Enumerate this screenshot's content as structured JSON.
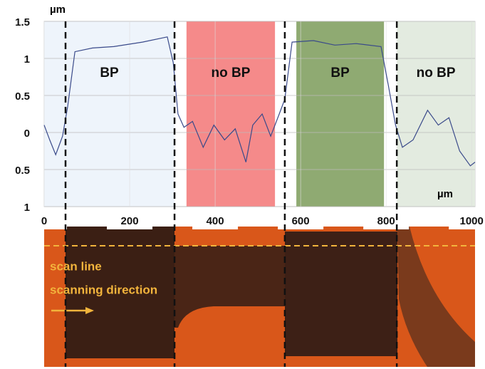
{
  "chart_data": {
    "type": "line",
    "y_unit": "µm",
    "x_unit": "µm",
    "x": [
      0,
      13,
      27,
      43,
      55,
      72,
      113,
      163,
      230,
      288,
      302,
      313,
      327,
      347,
      372,
      397,
      422,
      447,
      472,
      488,
      510,
      530,
      550,
      563,
      580,
      630,
      680,
      730,
      788,
      805,
      822,
      838,
      863,
      897,
      922,
      947,
      972,
      997,
      1008
    ],
    "series": [
      {
        "color": "#3a4a8a",
        "values": [
          0.1,
          -0.1,
          -0.3,
          -0.05,
          0.35,
          1.09,
          1.14,
          1.16,
          1.22,
          1.29,
          0.94,
          0.25,
          0.07,
          0.15,
          -0.2,
          0.1,
          -0.1,
          0.05,
          -0.4,
          0.1,
          0.25,
          -0.05,
          0.25,
          0.45,
          1.22,
          1.24,
          1.18,
          1.2,
          1.16,
          0.64,
          0.1,
          -0.2,
          -0.1,
          0.3,
          0.1,
          0.2,
          -0.25,
          -0.45,
          -0.4
        ]
      }
    ],
    "regions": [
      {
        "label": "BP",
        "x": [
          0,
          305
        ],
        "color": "#eef4fb"
      },
      {
        "label": "no BP",
        "x": [
          333,
          540
        ],
        "color": "#f58a8a"
      },
      {
        "label": "BP",
        "x": [
          590,
          795
        ],
        "color": "#8faa72"
      },
      {
        "label": "no BP",
        "x": [
          825,
          1008
        ],
        "color": "#e3ebe0"
      }
    ],
    "dividers": [
      50,
      305,
      563,
      825
    ],
    "xlim": [
      0,
      1008
    ],
    "xticks": [
      0,
      200,
      400,
      600,
      800,
      1000
    ],
    "ylim": [
      -1,
      1.5
    ],
    "yticks": [
      1.5,
      1,
      0.5,
      0,
      {
        "value": -0.5,
        "label": "0.5"
      },
      {
        "value": -1,
        "label": "1"
      }
    ],
    "grid": true,
    "annotations": [
      "scan line",
      "scanning direction"
    ]
  }
}
